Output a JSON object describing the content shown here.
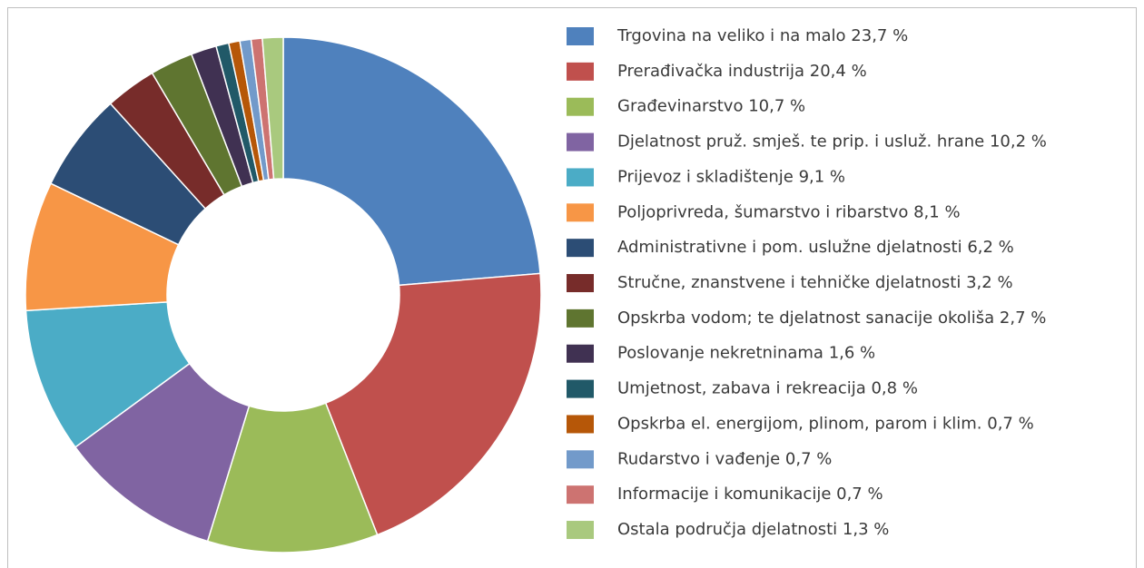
{
  "chart_data": {
    "type": "donut",
    "categories": [
      "Trgovina na veliko i na malo",
      "Prerađivačka industrija",
      "Građevinarstvo",
      "Djelatnost pruž. smješ. te prip. i usluž. hrane",
      "Prijevoz i skladištenje",
      "Poljoprivreda, šumarstvo i ribarstvo",
      "Administrativne i pom. uslužne djelatnosti",
      "Stručne, znanstvene i tehničke djelatnosti",
      "Opskrba vodom; te djelatnost sanacije okoliša",
      "Poslovanje nekretninama",
      "Umjetnost, zabava i rekreacija",
      "Opskrba el. energijom, plinom, parom i klim.",
      "Rudarstvo i vađenje",
      "Informacije i komunikacije",
      "Ostala područja djelatnosti"
    ],
    "values": [
      23.7,
      20.4,
      10.7,
      10.2,
      9.1,
      8.1,
      6.2,
      3.2,
      2.7,
      1.6,
      0.8,
      0.7,
      0.7,
      0.7,
      1.3
    ],
    "value_labels": [
      "23,7 %",
      "20,4 %",
      "10,7 %",
      "10,2 %",
      "9,1 %",
      "8,1 %",
      "6,2 %",
      "3,2 %",
      "2,7 %",
      "1,6 %",
      "0,8 %",
      "0,7 %",
      "0,7 %",
      "0,7 %",
      "1,3 %"
    ],
    "colors": [
      "#4f81bd",
      "#c0504d",
      "#9bbb59",
      "#8064a2",
      "#4bacc6",
      "#f79646",
      "#2c4d75",
      "#772c2a",
      "#5f7530",
      "#403152",
      "#215968",
      "#b65708",
      "#729aca",
      "#cd7371",
      "#a9c97e"
    ],
    "legend": "right"
  }
}
